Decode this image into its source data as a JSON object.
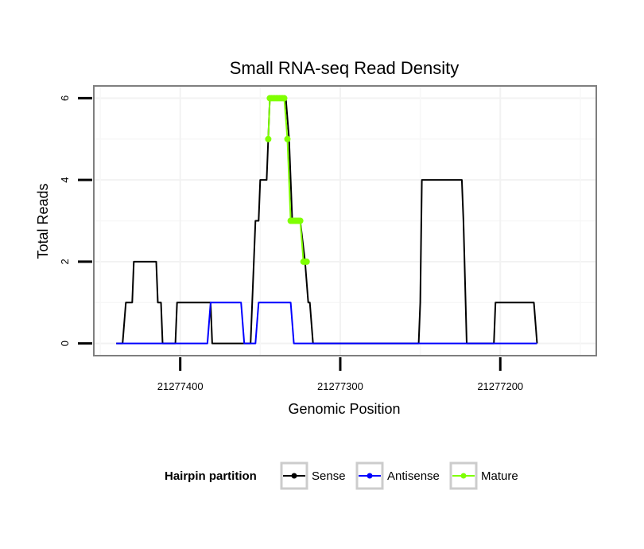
{
  "chart_data": {
    "type": "line",
    "title": "Small RNA-seq Read Density",
    "xlabel": "Genomic Position",
    "ylabel": "Total Reads",
    "x_reversed": true,
    "xlim": [
      21277454,
      21277140
    ],
    "ylim": [
      -0.3,
      6.3
    ],
    "x_ticks": [
      21277400,
      21277300,
      21277200
    ],
    "x_tick_labels": [
      "21277400",
      "21277300",
      "21277200"
    ],
    "y_ticks": [
      0,
      2,
      4,
      6
    ],
    "y_tick_labels": [
      "0",
      "2",
      "4",
      "6"
    ],
    "grid": true,
    "legend": {
      "title": "Hairpin partition",
      "position": "bottom",
      "entries": [
        {
          "name": "Sense",
          "color": "#000000"
        },
        {
          "name": "Antisense",
          "color": "#0000ff"
        },
        {
          "name": "Mature",
          "color": "#7fff00"
        }
      ]
    },
    "series": [
      {
        "name": "Sense",
        "color": "#000000",
        "points": [
          [
            21277440,
            0
          ],
          [
            21277436,
            0
          ],
          [
            21277434,
            1
          ],
          [
            21277430,
            1
          ],
          [
            21277429,
            2
          ],
          [
            21277415,
            2
          ],
          [
            21277414,
            1
          ],
          [
            21277412,
            1
          ],
          [
            21277411,
            0
          ],
          [
            21277403,
            0
          ],
          [
            21277402,
            1
          ],
          [
            21277381,
            1
          ],
          [
            21277380,
            0
          ],
          [
            21277356,
            0
          ],
          [
            21277353,
            3
          ],
          [
            21277351,
            3
          ],
          [
            21277350,
            4
          ],
          [
            21277346,
            4
          ],
          [
            21277344,
            6
          ],
          [
            21277334,
            6
          ],
          [
            21277332,
            5
          ],
          [
            21277330,
            3
          ],
          [
            21277325,
            3
          ],
          [
            21277322,
            2
          ],
          [
            21277320,
            1
          ],
          [
            21277319,
            1
          ],
          [
            21277317,
            0
          ],
          [
            21277251,
            0
          ],
          [
            21277250,
            1
          ],
          [
            21277249,
            4
          ],
          [
            21277224,
            4
          ],
          [
            21277223,
            3
          ],
          [
            21277221,
            0
          ],
          [
            21277204,
            0
          ],
          [
            21277203,
            1
          ],
          [
            21277179,
            1
          ],
          [
            21277177,
            0
          ]
        ]
      },
      {
        "name": "Antisense",
        "color": "#0000ff",
        "points": [
          [
            21277440,
            0
          ],
          [
            21277383,
            0
          ],
          [
            21277381,
            1
          ],
          [
            21277362,
            1
          ],
          [
            21277360,
            0
          ],
          [
            21277353,
            0
          ],
          [
            21277351,
            1
          ],
          [
            21277331,
            1
          ],
          [
            21277329,
            0
          ],
          [
            21277177,
            0
          ]
        ]
      },
      {
        "name": "Mature",
        "color": "#7fff00",
        "points": [
          [
            21277345,
            5
          ],
          [
            21277344,
            6
          ],
          [
            21277343,
            6
          ],
          [
            21277342,
            6
          ],
          [
            21277341,
            6
          ],
          [
            21277340,
            6
          ],
          [
            21277339,
            6
          ],
          [
            21277338,
            6
          ],
          [
            21277337,
            6
          ],
          [
            21277336,
            6
          ],
          [
            21277335,
            6
          ],
          [
            21277333,
            5
          ],
          [
            21277331,
            3
          ],
          [
            21277330,
            3
          ],
          [
            21277329,
            3
          ],
          [
            21277328,
            3
          ],
          [
            21277327,
            3
          ],
          [
            21277326,
            3
          ],
          [
            21277325,
            3
          ],
          [
            21277323,
            2
          ],
          [
            21277322,
            2
          ],
          [
            21277321,
            2
          ]
        ]
      }
    ]
  }
}
